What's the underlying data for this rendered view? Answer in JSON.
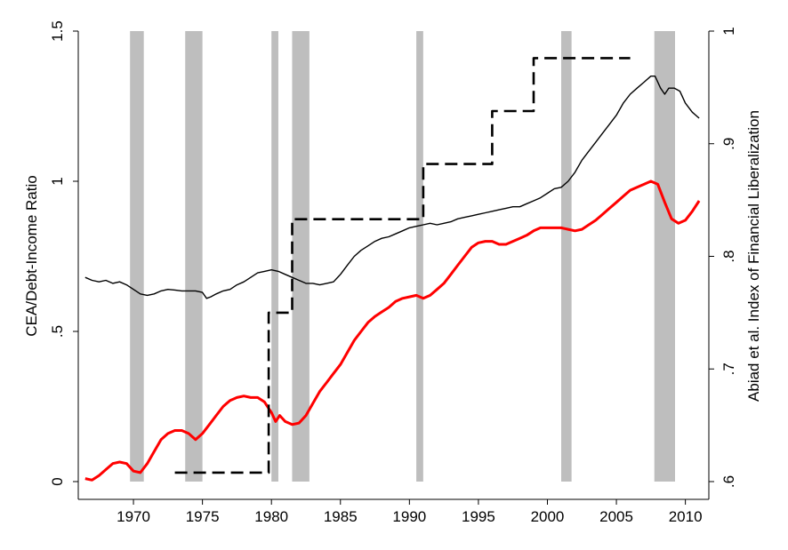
{
  "chart_data": {
    "type": "line",
    "xlabel": "",
    "ylabel_left": "CEA/Debt-Income Ratio",
    "ylabel_right": "Abiad et al. Index of Financial Liberalization",
    "xlim": [
      1966.0,
      2011.7
    ],
    "ylim_left": [
      0,
      1.5
    ],
    "ylim_right": [
      0.6,
      1.0
    ],
    "x_ticks": [
      1970,
      1975,
      1980,
      1985,
      1990,
      1995,
      2000,
      2005,
      2010
    ],
    "x_tick_labels": [
      "1970",
      "1975",
      "1980",
      "1985",
      "1990",
      "1995",
      "2000",
      "2005",
      "2010"
    ],
    "y_left_ticks": [
      0,
      0.5,
      1,
      1.5
    ],
    "y_left_tick_labels": [
      "0",
      ".5",
      "1",
      "1.5"
    ],
    "y_right_ticks": [
      0.6,
      0.7,
      0.8,
      0.9,
      1.0
    ],
    "y_right_tick_labels": [
      ".6",
      ".7",
      ".8",
      ".9",
      "1"
    ],
    "grid": false,
    "legend": "none",
    "recessions": [
      [
        1969.75,
        1970.75
      ],
      [
        1973.75,
        1975.0
      ],
      [
        1980.0,
        1980.5
      ],
      [
        1981.5,
        1982.75
      ],
      [
        1990.5,
        1991.0
      ],
      [
        2001.0,
        2001.75
      ],
      [
        2007.75,
        2009.25
      ]
    ],
    "recession_color": "#bebebe",
    "series": [
      {
        "axis": "left",
        "color": "#000000",
        "style": "solid-thin",
        "x": [
          1966.5,
          1967.0,
          1967.5,
          1968.0,
          1968.5,
          1969.0,
          1969.5,
          1970.0,
          1970.5,
          1971.0,
          1971.5,
          1972.0,
          1972.5,
          1973.0,
          1973.5,
          1974.0,
          1974.5,
          1975.0,
          1975.3,
          1975.6,
          1976.0,
          1976.5,
          1977.0,
          1977.5,
          1978.0,
          1978.5,
          1979.0,
          1979.5,
          1980.0,
          1980.5,
          1981.0,
          1981.5,
          1982.0,
          1982.5,
          1983.0,
          1983.5,
          1984.0,
          1984.5,
          1985.0,
          1985.5,
          1986.0,
          1986.5,
          1987.0,
          1987.5,
          1988.0,
          1988.5,
          1989.0,
          1989.5,
          1990.0,
          1990.5,
          1991.0,
          1991.5,
          1992.0,
          1992.5,
          1993.0,
          1993.5,
          1994.0,
          1994.5,
          1995.0,
          1995.5,
          1996.0,
          1996.5,
          1997.0,
          1997.5,
          1998.0,
          1998.5,
          1999.0,
          1999.5,
          2000.0,
          2000.5,
          2001.0,
          2001.5,
          2002.0,
          2002.5,
          2003.0,
          2003.5,
          2004.0,
          2004.5,
          2005.0,
          2005.5,
          2006.0,
          2006.5,
          2007.0,
          2007.5,
          2007.8,
          2008.2,
          2008.5,
          2008.8,
          2009.2,
          2009.6,
          2010.0,
          2010.5,
          2011.0
        ],
        "values": [
          0.68,
          0.67,
          0.665,
          0.67,
          0.66,
          0.665,
          0.655,
          0.64,
          0.625,
          0.62,
          0.625,
          0.635,
          0.64,
          0.638,
          0.635,
          0.635,
          0.635,
          0.63,
          0.61,
          0.615,
          0.625,
          0.635,
          0.64,
          0.655,
          0.665,
          0.68,
          0.695,
          0.7,
          0.705,
          0.7,
          0.69,
          0.68,
          0.67,
          0.66,
          0.66,
          0.655,
          0.66,
          0.665,
          0.69,
          0.72,
          0.75,
          0.77,
          0.785,
          0.8,
          0.81,
          0.815,
          0.825,
          0.835,
          0.845,
          0.85,
          0.855,
          0.86,
          0.855,
          0.86,
          0.865,
          0.875,
          0.88,
          0.885,
          0.89,
          0.895,
          0.9,
          0.905,
          0.91,
          0.915,
          0.915,
          0.925,
          0.935,
          0.945,
          0.96,
          0.975,
          0.98,
          1.0,
          1.03,
          1.07,
          1.1,
          1.13,
          1.16,
          1.19,
          1.22,
          1.26,
          1.29,
          1.31,
          1.33,
          1.35,
          1.35,
          1.31,
          1.29,
          1.31,
          1.31,
          1.3,
          1.26,
          1.23,
          1.21
        ]
      },
      {
        "axis": "left",
        "color": "#ff0000",
        "style": "solid-thick",
        "x": [
          1966.5,
          1967.0,
          1967.5,
          1968.0,
          1968.5,
          1969.0,
          1969.5,
          1970.0,
          1970.5,
          1971.0,
          1971.5,
          1972.0,
          1972.5,
          1973.0,
          1973.5,
          1974.0,
          1974.5,
          1975.0,
          1975.5,
          1976.0,
          1976.5,
          1977.0,
          1977.5,
          1978.0,
          1978.5,
          1979.0,
          1979.5,
          1980.0,
          1980.3,
          1980.6,
          1981.0,
          1981.5,
          1982.0,
          1982.5,
          1983.0,
          1983.5,
          1984.0,
          1984.5,
          1985.0,
          1985.5,
          1986.0,
          1986.5,
          1987.0,
          1987.5,
          1988.0,
          1988.5,
          1989.0,
          1989.5,
          1990.0,
          1990.5,
          1991.0,
          1991.5,
          1992.0,
          1992.5,
          1993.0,
          1993.5,
          1994.0,
          1994.5,
          1995.0,
          1995.5,
          1996.0,
          1996.5,
          1997.0,
          1997.5,
          1998.0,
          1998.5,
          1999.0,
          1999.5,
          2000.0,
          2000.5,
          2001.0,
          2001.5,
          2002.0,
          2002.5,
          2003.0,
          2003.5,
          2004.0,
          2004.5,
          2005.0,
          2005.5,
          2006.0,
          2006.5,
          2007.0,
          2007.5,
          2008.0,
          2008.5,
          2009.0,
          2009.5,
          2010.0,
          2010.5,
          2011.0
        ],
        "values": [
          0.01,
          0.005,
          0.02,
          0.04,
          0.06,
          0.065,
          0.06,
          0.035,
          0.03,
          0.06,
          0.1,
          0.14,
          0.16,
          0.17,
          0.17,
          0.16,
          0.14,
          0.16,
          0.19,
          0.22,
          0.25,
          0.27,
          0.28,
          0.285,
          0.28,
          0.28,
          0.265,
          0.23,
          0.2,
          0.22,
          0.2,
          0.19,
          0.195,
          0.22,
          0.26,
          0.3,
          0.33,
          0.36,
          0.39,
          0.43,
          0.47,
          0.5,
          0.53,
          0.55,
          0.565,
          0.58,
          0.6,
          0.61,
          0.615,
          0.62,
          0.61,
          0.62,
          0.64,
          0.66,
          0.69,
          0.72,
          0.75,
          0.78,
          0.795,
          0.8,
          0.8,
          0.79,
          0.79,
          0.8,
          0.81,
          0.82,
          0.835,
          0.845,
          0.845,
          0.845,
          0.845,
          0.84,
          0.835,
          0.84,
          0.855,
          0.87,
          0.89,
          0.91,
          0.93,
          0.95,
          0.97,
          0.98,
          0.99,
          1.0,
          0.99,
          0.93,
          0.875,
          0.86,
          0.87,
          0.9,
          0.935
        ]
      },
      {
        "axis": "right",
        "color": "#000000",
        "style": "dashed",
        "x": [
          1973.0,
          1979.8,
          1979.8,
          1981.5,
          1981.5,
          1982.0,
          1982.0,
          1991.0,
          1991.0,
          1996.0,
          1996.0,
          1999.0,
          1999.0,
          2006.0
        ],
        "values": [
          0.608,
          0.608,
          0.75,
          0.75,
          0.833,
          0.833,
          0.833,
          0.833,
          0.882,
          0.882,
          0.929,
          0.929,
          0.976,
          0.976
        ]
      }
    ]
  }
}
